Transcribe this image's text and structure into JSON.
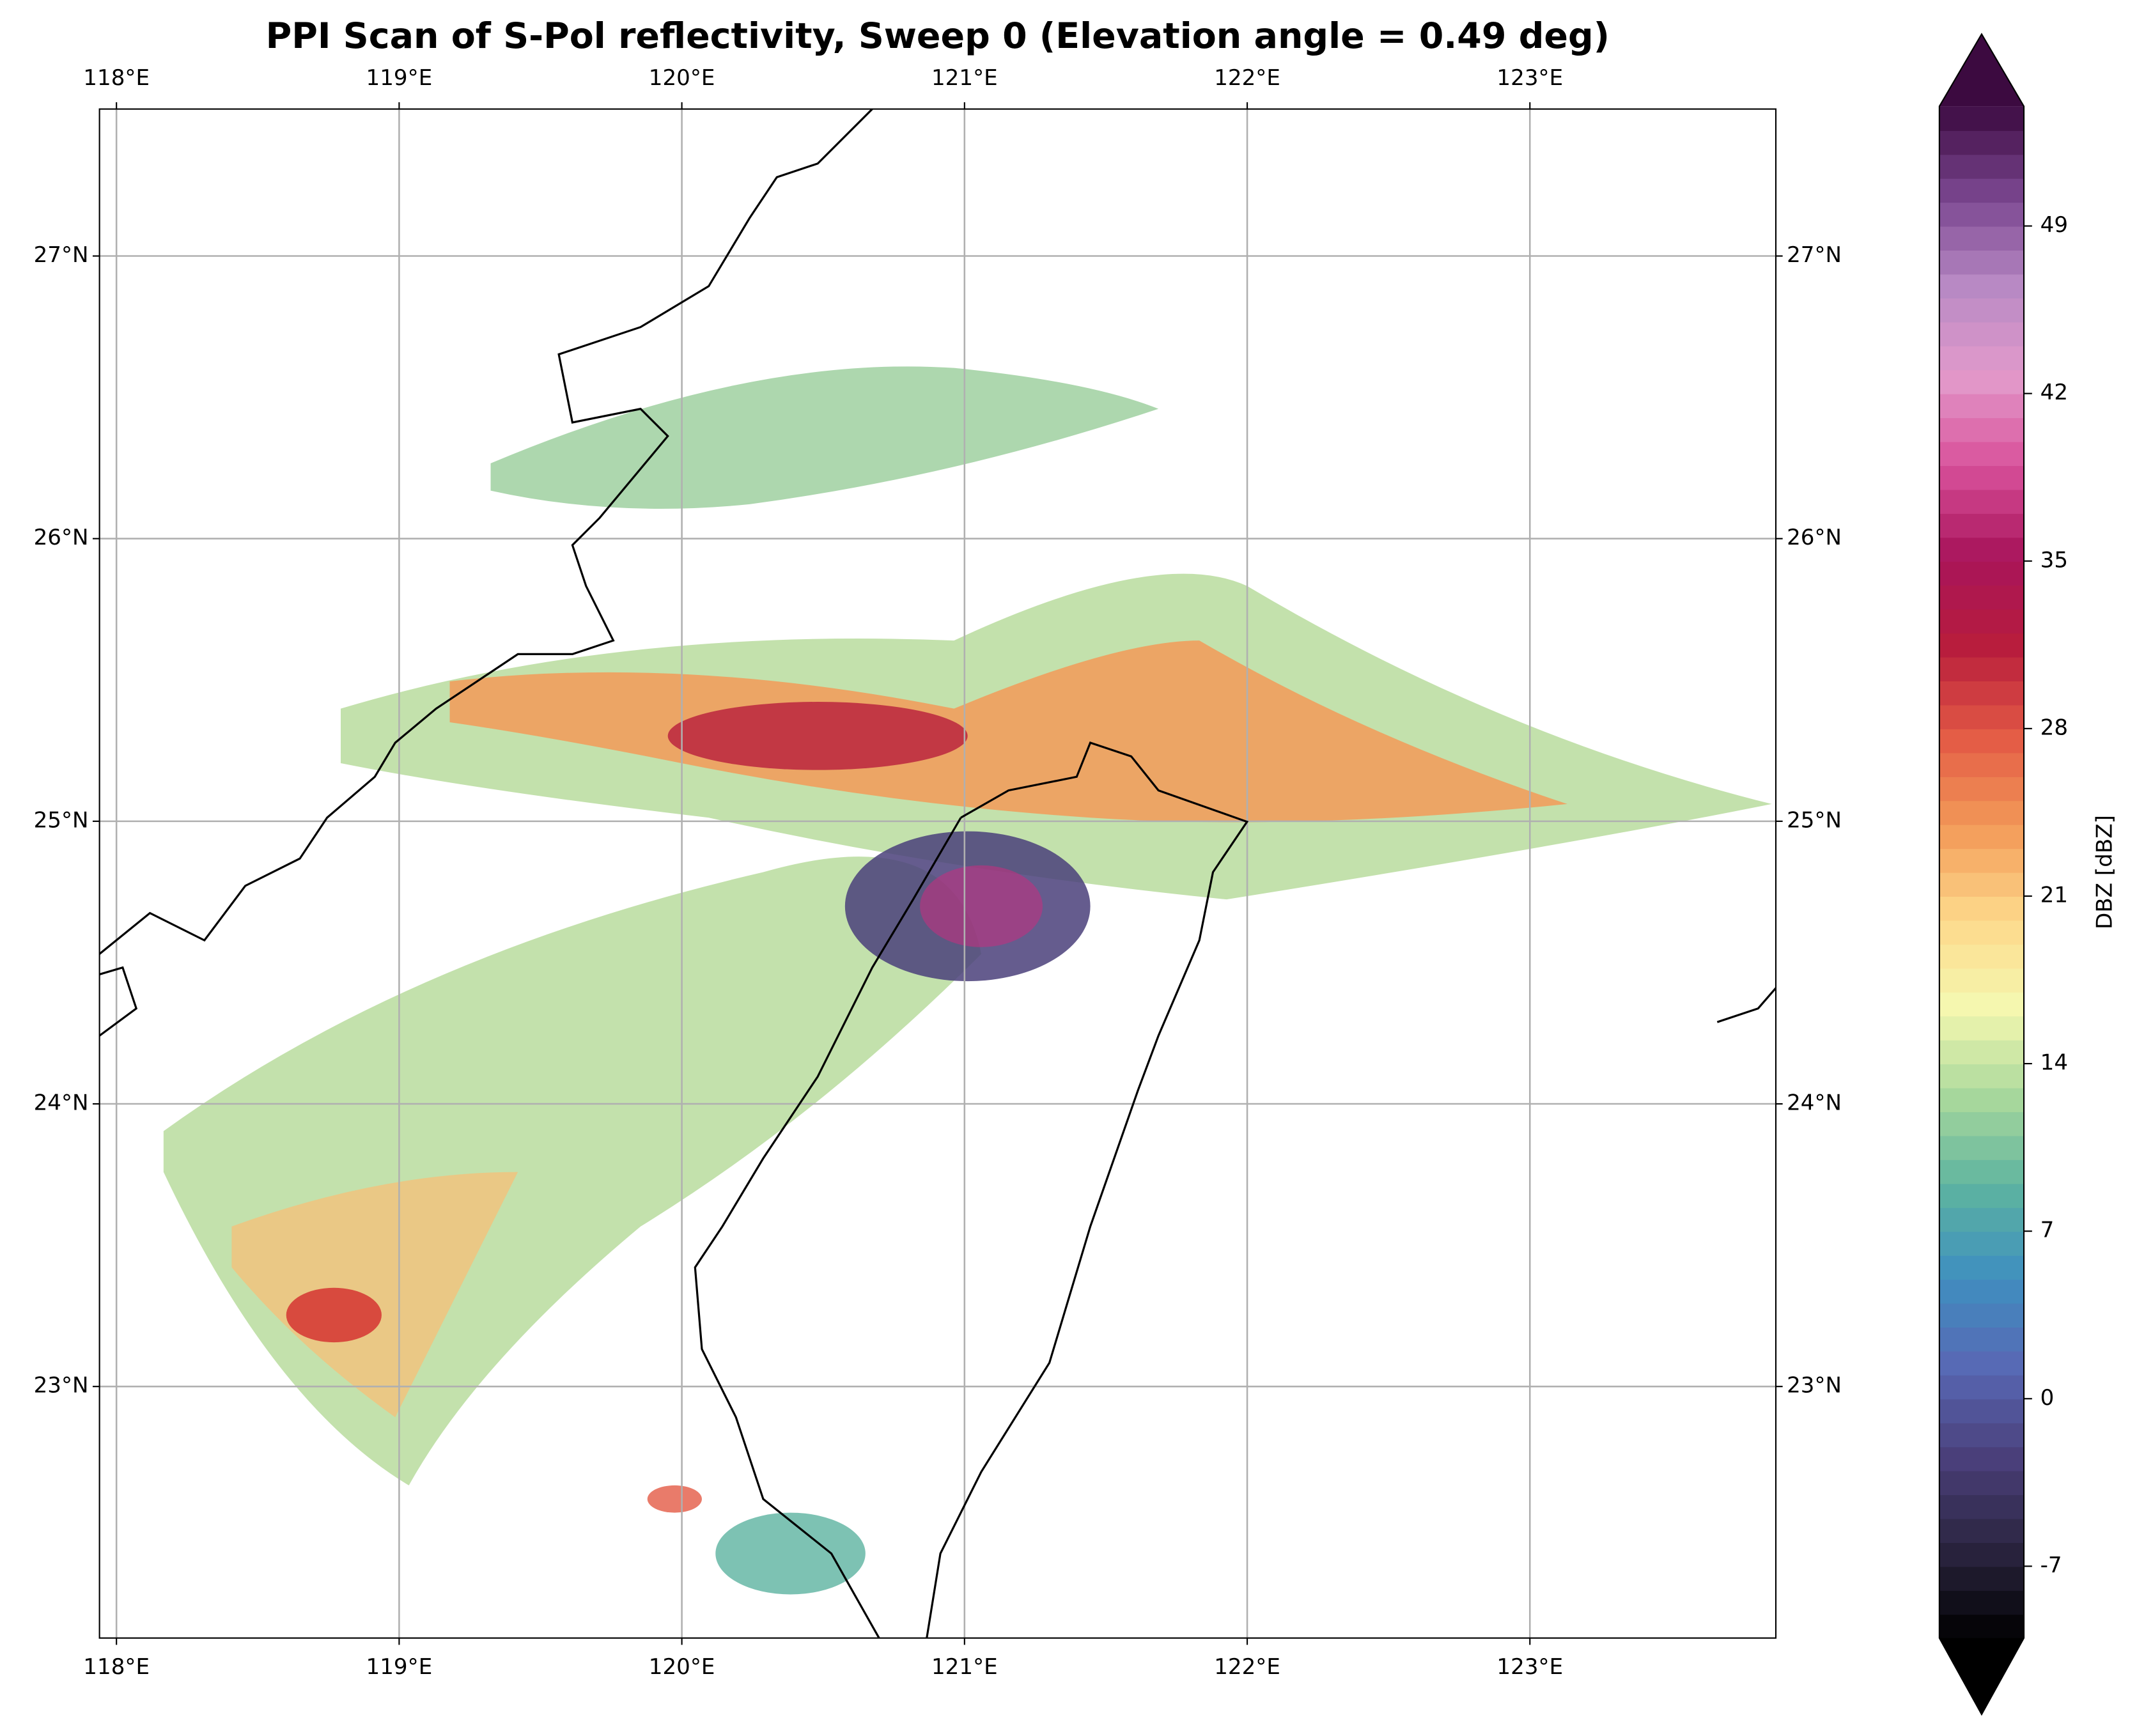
{
  "chart_data": {
    "type": "radar-ppi",
    "title": "PPI Scan of S-Pol reflectivity, Sweep 0 (Elevation angle = 0.49 deg)",
    "xlim": [
      117.94,
      123.87
    ],
    "xticks": [
      {
        "value": 118,
        "label": "118°E"
      },
      {
        "value": 119,
        "label": "119°E"
      },
      {
        "value": 120,
        "label": "120°E"
      },
      {
        "value": 121,
        "label": "121°E"
      },
      {
        "value": 122,
        "label": "122°E"
      },
      {
        "value": 123,
        "label": "123°E"
      }
    ],
    "ylim": [
      22.11,
      27.52
    ],
    "yticks": [
      {
        "value": 23,
        "label": "23°N"
      },
      {
        "value": 24,
        "label": "24°N"
      },
      {
        "value": 25,
        "label": "25°N"
      },
      {
        "value": 26,
        "label": "26°N"
      },
      {
        "value": 27,
        "label": "27°N"
      }
    ],
    "grid": true,
    "colorbar": {
      "label": "DBZ [dBZ]",
      "lim": [
        -10,
        54
      ],
      "ticks": [
        -7,
        0,
        7,
        14,
        21,
        28,
        35,
        42,
        49
      ],
      "colors": [
        "#000000",
        "#2b2540",
        "#4a3f7a",
        "#5868b4",
        "#3f8fc0",
        "#5cb3a0",
        "#a8d89c",
        "#f5f8b0",
        "#fdd88a",
        "#f39a58",
        "#e35a45",
        "#b81d3c",
        "#a8145a",
        "#d8509a",
        "#e39acb",
        "#b88ac4",
        "#7a4690",
        "#3c0a40"
      ]
    }
  }
}
